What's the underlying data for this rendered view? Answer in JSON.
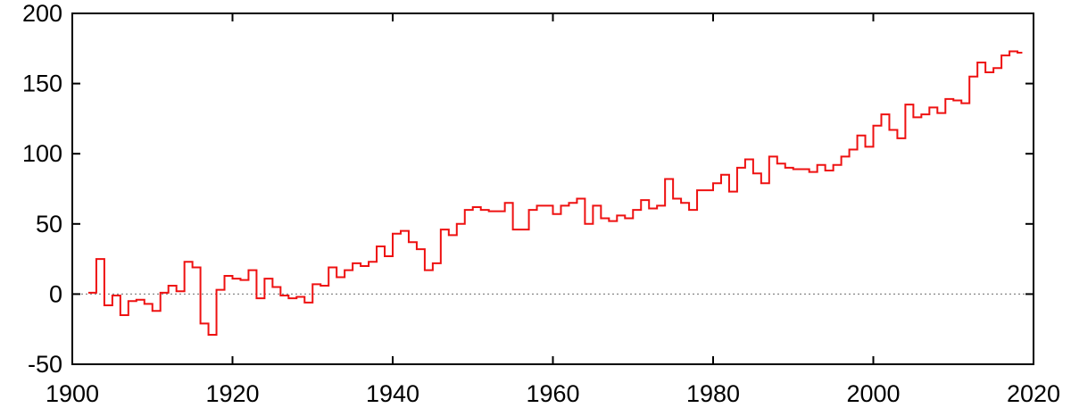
{
  "chart_data": {
    "type": "line",
    "step": true,
    "title": "",
    "xlabel": "",
    "ylabel": "",
    "xlim": [
      1900,
      2020
    ],
    "ylim": [
      -50,
      200
    ],
    "xticks": [
      "1900",
      "1920",
      "1940",
      "1960",
      "1980",
      "2000",
      "2020"
    ],
    "yticks": [
      "200",
      "150",
      "100",
      "50",
      "0",
      "-50"
    ],
    "reference_line": {
      "y": 0,
      "style": "dotted",
      "color": "#888888"
    },
    "legend": "none",
    "grid": false,
    "series": [
      {
        "color": "#ee1111",
        "points": [
          [
            1902,
            1
          ],
          [
            1903,
            25
          ],
          [
            1904,
            -8
          ],
          [
            1905,
            -1
          ],
          [
            1906,
            -15
          ],
          [
            1907,
            -5
          ],
          [
            1908,
            -4
          ],
          [
            1909,
            -7
          ],
          [
            1910,
            -12
          ],
          [
            1911,
            1
          ],
          [
            1912,
            6
          ],
          [
            1913,
            2
          ],
          [
            1914,
            23
          ],
          [
            1915,
            19
          ],
          [
            1916,
            -21
          ],
          [
            1917,
            -29
          ],
          [
            1918,
            3
          ],
          [
            1919,
            13
          ],
          [
            1920,
            11
          ],
          [
            1921,
            10
          ],
          [
            1922,
            17
          ],
          [
            1923,
            -3
          ],
          [
            1924,
            11
          ],
          [
            1925,
            5
          ],
          [
            1926,
            -1
          ],
          [
            1927,
            -3
          ],
          [
            1928,
            -2
          ],
          [
            1929,
            -6
          ],
          [
            1930,
            7
          ],
          [
            1931,
            6
          ],
          [
            1932,
            19
          ],
          [
            1933,
            12
          ],
          [
            1934,
            17
          ],
          [
            1935,
            22
          ],
          [
            1936,
            20
          ],
          [
            1937,
            23
          ],
          [
            1938,
            34
          ],
          [
            1939,
            27
          ],
          [
            1940,
            43
          ],
          [
            1941,
            45
          ],
          [
            1942,
            37
          ],
          [
            1943,
            32
          ],
          [
            1944,
            17
          ],
          [
            1945,
            22
          ],
          [
            1946,
            46
          ],
          [
            1947,
            42
          ],
          [
            1948,
            50
          ],
          [
            1949,
            60
          ],
          [
            1950,
            62
          ],
          [
            1951,
            60
          ],
          [
            1952,
            59
          ],
          [
            1953,
            59
          ],
          [
            1954,
            65
          ],
          [
            1955,
            46
          ],
          [
            1956,
            46
          ],
          [
            1957,
            60
          ],
          [
            1958,
            63
          ],
          [
            1959,
            63
          ],
          [
            1960,
            57
          ],
          [
            1961,
            63
          ],
          [
            1962,
            65
          ],
          [
            1963,
            68
          ],
          [
            1964,
            50
          ],
          [
            1965,
            63
          ],
          [
            1966,
            54
          ],
          [
            1967,
            52
          ],
          [
            1968,
            56
          ],
          [
            1969,
            54
          ],
          [
            1970,
            60
          ],
          [
            1971,
            67
          ],
          [
            1972,
            61
          ],
          [
            1973,
            63
          ],
          [
            1974,
            82
          ],
          [
            1975,
            68
          ],
          [
            1976,
            65
          ],
          [
            1977,
            60
          ],
          [
            1978,
            74
          ],
          [
            1979,
            74
          ],
          [
            1980,
            79
          ],
          [
            1981,
            85
          ],
          [
            1982,
            73
          ],
          [
            1983,
            90
          ],
          [
            1984,
            96
          ],
          [
            1985,
            86
          ],
          [
            1986,
            79
          ],
          [
            1987,
            98
          ],
          [
            1988,
            93
          ],
          [
            1989,
            90
          ],
          [
            1990,
            89
          ],
          [
            1991,
            89
          ],
          [
            1992,
            87
          ],
          [
            1993,
            92
          ],
          [
            1994,
            88
          ],
          [
            1995,
            92
          ],
          [
            1996,
            98
          ],
          [
            1997,
            103
          ],
          [
            1998,
            113
          ],
          [
            1999,
            105
          ],
          [
            2000,
            120
          ],
          [
            2001,
            128
          ],
          [
            2002,
            117
          ],
          [
            2003,
            111
          ],
          [
            2004,
            135
          ],
          [
            2005,
            126
          ],
          [
            2006,
            128
          ],
          [
            2007,
            133
          ],
          [
            2008,
            129
          ],
          [
            2009,
            139
          ],
          [
            2010,
            138
          ],
          [
            2011,
            136
          ],
          [
            2012,
            155
          ],
          [
            2013,
            165
          ],
          [
            2014,
            158
          ],
          [
            2015,
            161
          ],
          [
            2016,
            170
          ],
          [
            2017,
            173
          ],
          [
            2018,
            172
          ]
        ],
        "end_x": 2018.6
      }
    ]
  }
}
